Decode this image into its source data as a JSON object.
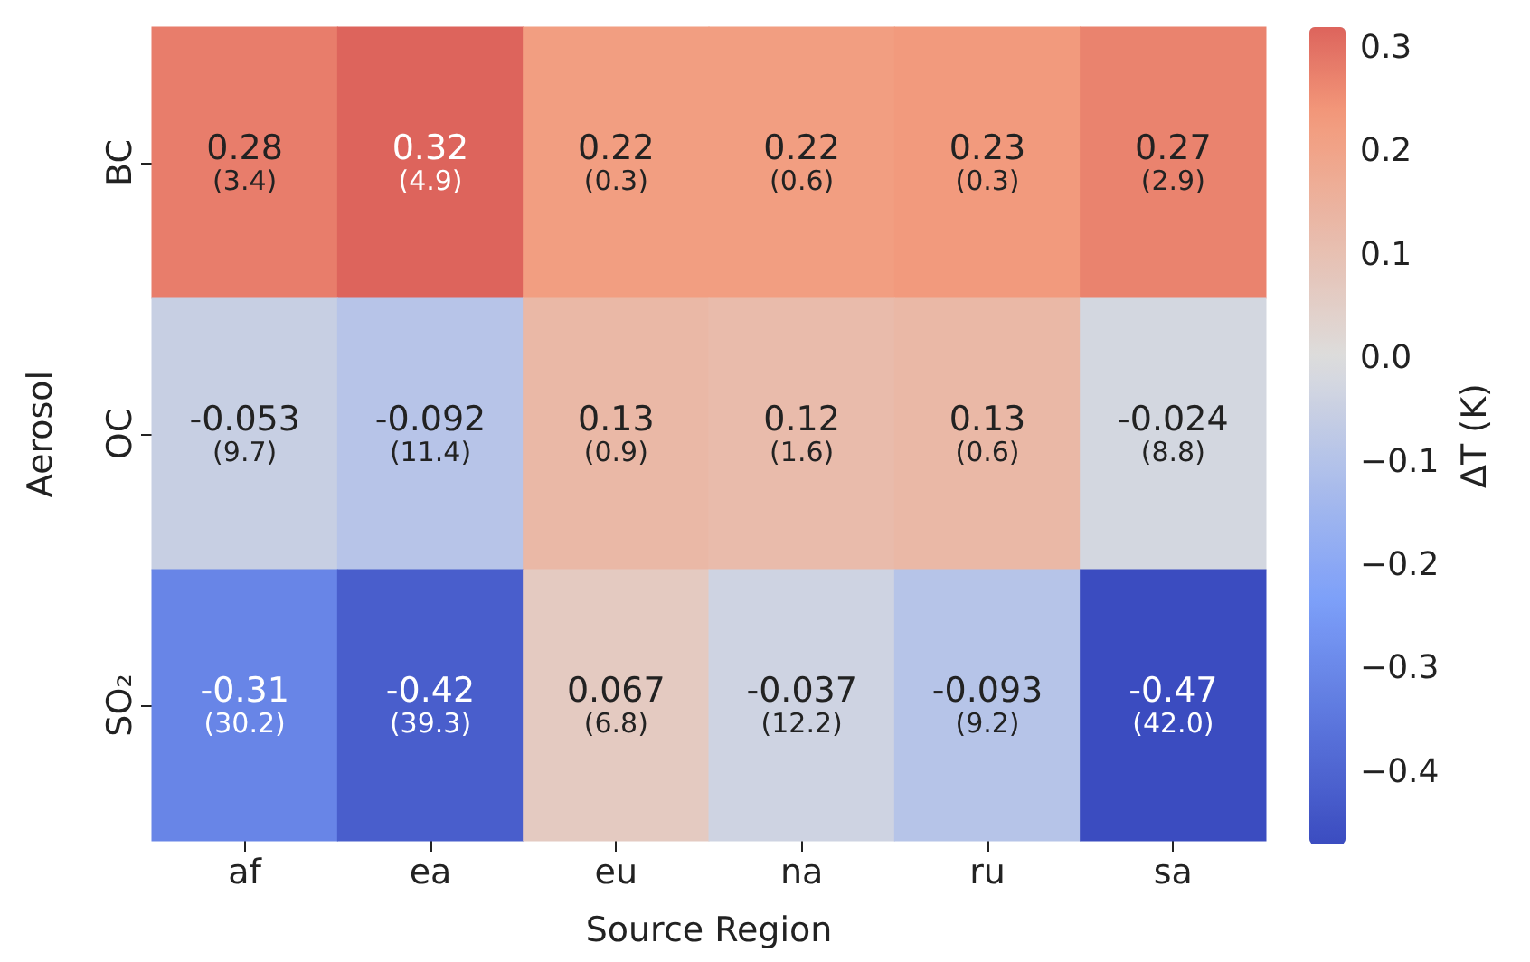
{
  "chart_data": {
    "type": "heatmap",
    "xlabel": "Source Region",
    "ylabel": "Aerosol",
    "clabel": "ΔT (K)",
    "categories": [
      "af",
      "ea",
      "eu",
      "na",
      "ru",
      "sa"
    ],
    "y_categories": [
      "BC",
      "OC",
      "SO₂"
    ],
    "cells": [
      [
        0.28,
        0.32,
        0.22,
        0.22,
        0.23,
        0.27
      ],
      [
        -0.053,
        -0.092,
        0.13,
        0.12,
        0.13,
        -0.024
      ],
      [
        -0.31,
        -0.42,
        0.067,
        -0.037,
        -0.093,
        -0.47
      ]
    ],
    "cell_labels": [
      [
        "0.28\n(3.4)",
        "0.32\n(4.9)",
        "0.22\n(0.3)",
        "0.22\n(0.6)",
        "0.23\n(0.3)",
        "0.27\n(2.9)"
      ],
      [
        "-0.053\n(9.7)",
        "-0.092\n(11.4)",
        "0.13\n(0.9)",
        "0.12\n(1.6)",
        "0.13\n(0.6)",
        "-0.024\n(8.8)"
      ],
      [
        "-0.31\n(30.2)",
        "-0.42\n(39.3)",
        "0.067\n(6.8)",
        "-0.037\n(12.2)",
        "-0.093\n(9.2)",
        "-0.47\n(42.0)"
      ]
    ],
    "clim": [
      -0.47,
      0.32
    ],
    "cticks": [
      {
        "value": -0.4,
        "label": "−0.4"
      },
      {
        "value": -0.3,
        "label": "−0.3"
      },
      {
        "value": -0.2,
        "label": "−0.2"
      },
      {
        "value": -0.1,
        "label": "−0.1"
      },
      {
        "value": 0,
        "label": "0.0"
      },
      0.1,
      0.2,
      0.3
    ]
  }
}
